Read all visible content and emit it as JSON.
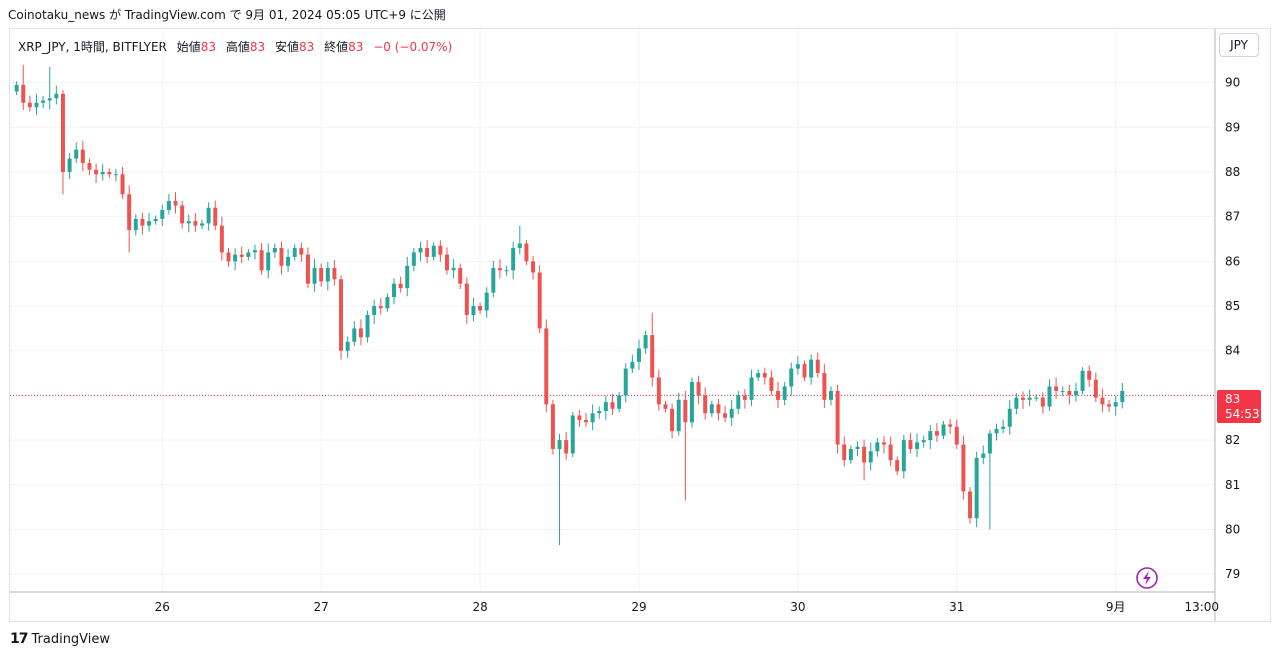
{
  "publish_line": "Coinotaku_news が TradingView.com で 9月 01, 2024 05:05 UTC+9 に公開",
  "legend": {
    "symbol": "XRP_JPY, 1時間, BITFLYER",
    "open_label": "始値",
    "open_value": "83",
    "high_label": "高値",
    "high_value": "83",
    "low_label": "安値",
    "low_value": "83",
    "close_label": "終値",
    "close_value": "83",
    "change": "−0 (−0.07%)"
  },
  "currency_button": "JPY",
  "price_tag": {
    "price": "83",
    "countdown": "54:53"
  },
  "branding": "TradingView",
  "colors": {
    "up": "#26a69a",
    "down": "#ef5350",
    "grid": "#f0f3fa",
    "last_price_line": "#f23645",
    "bolt": "#9c27b0"
  },
  "chart_data": {
    "type": "candlestick",
    "title": "XRP_JPY, 1時間, BITFLYER",
    "currency": "JPY",
    "interval": "1h",
    "ylim": [
      78.6,
      91.2
    ],
    "y_ticks": [
      79,
      80,
      81,
      82,
      83,
      84,
      85,
      86,
      87,
      88,
      89,
      90
    ],
    "x_ticks": [
      {
        "label": "26",
        "hour": 22
      },
      {
        "label": "27",
        "hour": 46
      },
      {
        "label": "28",
        "hour": 70
      },
      {
        "label": "29",
        "hour": 94
      },
      {
        "label": "30",
        "hour": 118
      },
      {
        "label": "31",
        "hour": 142
      },
      {
        "label": "9月",
        "hour": 166
      },
      {
        "label": "13:00",
        "hour": 179
      }
    ],
    "x_range_hours": [
      -1,
      181
    ],
    "grid": true,
    "last_price": 83.0,
    "closes": [
      89.95,
      89.55,
      89.45,
      89.55,
      89.6,
      89.65,
      89.75,
      88.0,
      88.3,
      88.5,
      88.2,
      88.05,
      87.95,
      88.0,
      87.95,
      87.95,
      87.5,
      86.7,
      86.95,
      86.8,
      86.9,
      86.95,
      87.15,
      87.35,
      87.25,
      86.85,
      86.9,
      86.8,
      86.85,
      87.2,
      86.8,
      86.2,
      86.0,
      86.15,
      86.1,
      86.2,
      86.25,
      85.8,
      86.2,
      86.3,
      85.9,
      86.1,
      86.3,
      86.15,
      85.5,
      85.85,
      85.55,
      85.85,
      85.6,
      84.0,
      84.2,
      84.5,
      84.3,
      84.8,
      85.0,
      84.95,
      85.2,
      85.5,
      85.4,
      85.9,
      86.2,
      86.3,
      86.1,
      86.35,
      86.15,
      85.8,
      85.85,
      85.5,
      84.8,
      85.0,
      84.9,
      85.3,
      85.85,
      85.8,
      85.8,
      86.3,
      86.4,
      86.0,
      85.75,
      84.5,
      82.8,
      81.8,
      82.0,
      81.7,
      82.55,
      82.45,
      82.4,
      82.6,
      82.65,
      82.85,
      82.7,
      83.0,
      83.6,
      83.75,
      84.05,
      84.35,
      83.4,
      82.8,
      82.7,
      82.2,
      82.9,
      82.4,
      83.3,
      83.0,
      82.6,
      82.8,
      82.6,
      82.5,
      82.7,
      83.0,
      82.9,
      83.4,
      83.5,
      83.4,
      83.1,
      82.9,
      83.2,
      83.6,
      83.7,
      83.4,
      83.8,
      83.5,
      82.9,
      83.1,
      81.9,
      81.55,
      81.8,
      81.85,
      81.5,
      81.75,
      81.95,
      81.9,
      81.55,
      81.3,
      82.0,
      81.8,
      81.95,
      82.0,
      82.2,
      82.1,
      82.35,
      82.3,
      81.9,
      80.85,
      80.25,
      81.6,
      81.7,
      82.15,
      82.25,
      82.3,
      82.7,
      82.95,
      82.9,
      82.95,
      82.95,
      82.75,
      83.2,
      83.1,
      83.1,
      83.0,
      83.1,
      83.55,
      83.35,
      82.95,
      82.8,
      82.75,
      82.85,
      83.1
    ],
    "extremes": [
      {
        "hour": 1,
        "high": 90.4
      },
      {
        "hour": 5,
        "high": 90.35
      },
      {
        "hour": 7,
        "low": 87.5
      },
      {
        "hour": 17,
        "low": 86.2
      },
      {
        "hour": 49,
        "low": 83.8
      },
      {
        "hour": 76,
        "high": 86.8
      },
      {
        "hour": 82,
        "low": 79.65
      },
      {
        "hour": 96,
        "high": 84.85
      },
      {
        "hour": 101,
        "low": 80.65
      },
      {
        "hour": 128,
        "low": 81.1
      },
      {
        "hour": 147,
        "low": 80.0
      },
      {
        "hour": 169,
        "high": 83.8
      },
      {
        "hour": 176,
        "high": 83.2
      }
    ]
  }
}
